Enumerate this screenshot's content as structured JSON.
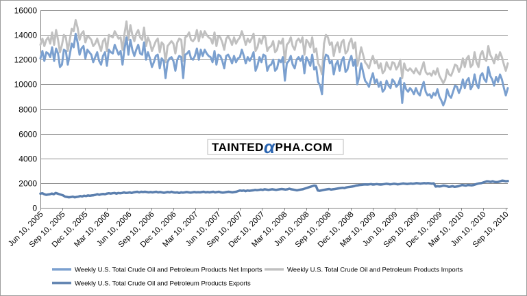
{
  "chart_data": {
    "type": "line",
    "title": "",
    "xlabel": "",
    "ylabel": "",
    "ylim": [
      0,
      16000
    ],
    "yticks": [
      0,
      2000,
      4000,
      6000,
      8000,
      10000,
      12000,
      14000,
      16000
    ],
    "xtick_labels": [
      "Jun 10, 2005",
      "Sep 10, 2005",
      "Dec 10, 2005",
      "Mar 10, 2006",
      "Jun 10, 2006",
      "Sep 10, 2006",
      "Dec 10, 2006",
      "Mar 10, 2007",
      "Jun 10, 2007",
      "Sep 10, 2007",
      "Dec 10, 2007",
      "Mar 10, 2008",
      "Jun 10, 2008",
      "Sep 10, 2008",
      "Dec 10, 2008",
      "Mar 10, 2009",
      "Jun 10, 2009",
      "Sep 10, 2009",
      "Dec 10, 2009",
      "Mar 10, 2010",
      "Jun 10, 2010",
      "Sep 10, 2010"
    ],
    "x_start_index": 0,
    "x_end_index": 21.1,
    "grid": true,
    "legend_position": "bottom",
    "series": [
      {
        "name": "Weekly U.S. Total Crude Oil and Petroleum Products Net Imports",
        "color": "#7ba0cf",
        "width": 3,
        "values": [
          12100,
          12700,
          11900,
          12600,
          12500,
          12200,
          13000,
          11900,
          12900,
          12500,
          11400,
          11600,
          12800,
          12700,
          11600,
          12400,
          13300,
          13000,
          14100,
          13400,
          12400,
          12900,
          13100,
          12100,
          12800,
          12600,
          12400,
          11800,
          12200,
          12600,
          11900,
          11600,
          12300,
          12600,
          11500,
          12800,
          12600,
          12500,
          13200,
          12800,
          12400,
          12700,
          11600,
          12900,
          13800,
          12400,
          13600,
          12800,
          12300,
          12800,
          13200,
          12500,
          12400,
          13400,
          12000,
          12600,
          12100,
          11400,
          11800,
          12300,
          12400,
          11300,
          12100,
          11900,
          10500,
          11800,
          12100,
          12200,
          11900,
          11100,
          12000,
          12300,
          12200,
          10500,
          12400,
          12500,
          12700,
          12100,
          12000,
          12300,
          12900,
          12000,
          12800,
          12300,
          12800,
          12500,
          12300,
          12200,
          11800,
          12700,
          11600,
          12400,
          12300,
          11900,
          11300,
          12300,
          12400,
          12100,
          11700,
          12300,
          11800,
          12100,
          12200,
          12800,
          12300,
          11700,
          12200,
          11900,
          12200,
          12600,
          11100,
          11500,
          12200,
          11800,
          12400,
          12300,
          11100,
          11500,
          11600,
          12000,
          11100,
          11300,
          12000,
          11800,
          12200,
          10300,
          11700,
          11900,
          12300,
          11600,
          11300,
          12000,
          12200,
          11900,
          12300,
          10900,
          12200,
          11900,
          11500,
          12400,
          11200,
          11400,
          10200,
          9900,
          9200,
          11800,
          12400,
          12300,
          11700,
          11900,
          10800,
          11600,
          11900,
          11100,
          11900,
          12200,
          11000,
          11200,
          11900,
          12300,
          11500,
          12000,
          10000,
          10600,
          11700,
          11000,
          10300,
          10100,
          9800,
          10400,
          10900,
          10100,
          10400,
          9800,
          10200,
          9400,
          9600,
          10300,
          9900,
          9700,
          10400,
          10200,
          9800,
          10000,
          10500,
          8500,
          10100,
          9600,
          9400,
          9700,
          9500,
          9200,
          9700,
          9300,
          9100,
          9700,
          10200,
          9400,
          9100,
          9200,
          8900,
          9300,
          9100,
          9600,
          9000,
          8700,
          8300,
          8700,
          9600,
          9100,
          8900,
          9400,
          9900,
          9800,
          9300,
          9700,
          10400,
          9700,
          10300,
          10500,
          9600,
          9900,
          10800,
          10000,
          9700,
          10700,
          10900,
          10400,
          10200,
          11400,
          10700,
          10400,
          9900,
          10600,
          10200,
          10800,
          10400,
          9700,
          9100,
          9700
        ]
      },
      {
        "name": "Weekly U.S. Total Crude Oil and Petroleum Products Imports",
        "color": "#c0c0c0",
        "width": 3,
        "values": [
          13200,
          13700,
          13100,
          13600,
          13800,
          13300,
          14200,
          13200,
          14400,
          13600,
          12600,
          13200,
          14000,
          13800,
          12700,
          13600,
          14500,
          14300,
          15200,
          14600,
          13600,
          14100,
          14300,
          13400,
          13900,
          13800,
          13600,
          13100,
          13300,
          13700,
          13200,
          12700,
          13500,
          13700,
          12700,
          14000,
          13900,
          13800,
          14300,
          14000,
          13700,
          13800,
          12800,
          14100,
          15100,
          13600,
          14800,
          14000,
          13500,
          14100,
          14400,
          13800,
          13600,
          14600,
          13100,
          13800,
          13400,
          12700,
          13100,
          13500,
          13700,
          12600,
          13400,
          13200,
          11800,
          13100,
          13300,
          13500,
          13300,
          12500,
          13400,
          13700,
          13600,
          11900,
          13800,
          13900,
          14200,
          13600,
          13500,
          13700,
          14400,
          13500,
          14300,
          13800,
          14300,
          14000,
          13800,
          13700,
          13300,
          14200,
          13100,
          13900,
          13800,
          13400,
          12800,
          13700,
          13900,
          13600,
          13200,
          13800,
          13300,
          13600,
          13800,
          14300,
          13800,
          13200,
          13700,
          13400,
          13700,
          14100,
          12700,
          13000,
          13700,
          13300,
          13900,
          13800,
          12700,
          13000,
          13100,
          13500,
          12600,
          12800,
          13500,
          13300,
          13700,
          11800,
          13200,
          13400,
          13800,
          13100,
          12800,
          13500,
          13700,
          13400,
          13800,
          12400,
          13600,
          13400,
          13000,
          13800,
          12600,
          12900,
          11700,
          11400,
          10800,
          13300,
          14000,
          13800,
          13200,
          13400,
          12300,
          13100,
          13400,
          12600,
          13400,
          13600,
          12500,
          12700,
          13400,
          13700,
          12900,
          13400,
          11500,
          12100,
          13000,
          12400,
          11800,
          11600,
          11300,
          11900,
          12300,
          11700,
          11900,
          11300,
          11700,
          10900,
          11100,
          11800,
          11400,
          11200,
          11800,
          11700,
          11200,
          11500,
          12000,
          10500,
          11700,
          11200,
          11100,
          11300,
          11100,
          10900,
          11300,
          11000,
          10800,
          11300,
          11800,
          11000,
          10800,
          10900,
          10700,
          11100,
          10800,
          11300,
          10700,
          10400,
          10100,
          10400,
          11200,
          10800,
          10700,
          11100,
          11600,
          11500,
          11000,
          11400,
          12100,
          11400,
          12100,
          12300,
          11400,
          11600,
          12600,
          11800,
          11400,
          12400,
          12700,
          12100,
          11900,
          13100,
          12400,
          12100,
          11700,
          12400,
          12000,
          12600,
          12200,
          11600,
          11100,
          11700
        ]
      },
      {
        "name": "Weekly U.S. Total Crude Oil and Petroleum Products Exports",
        "color": "#5b7fae",
        "width": 3.5,
        "values": [
          1150,
          1180,
          1100,
          1050,
          1080,
          1100,
          1150,
          1100,
          1200,
          1150,
          1100,
          1050,
          1000,
          900,
          880,
          850,
          870,
          900,
          850,
          880,
          900,
          950,
          920,
          980,
          950,
          1000,
          980,
          1000,
          1020,
          1050,
          1100,
          1050,
          1100,
          1120,
          1100,
          1150,
          1180,
          1150,
          1180,
          1200,
          1150,
          1200,
          1180,
          1200,
          1250,
          1200,
          1220,
          1250,
          1200,
          1250,
          1280,
          1300,
          1250,
          1300,
          1280,
          1300,
          1280,
          1250,
          1280,
          1250,
          1280,
          1300,
          1250,
          1280,
          1250,
          1220,
          1250,
          1280,
          1250,
          1300,
          1250,
          1230,
          1250,
          1200,
          1250,
          1230,
          1250,
          1280,
          1250,
          1230,
          1250,
          1280,
          1250,
          1270,
          1250,
          1280,
          1300,
          1250,
          1280,
          1250,
          1280,
          1300,
          1250,
          1280,
          1300,
          1250,
          1230,
          1250,
          1280,
          1300,
          1280,
          1250,
          1280,
          1300,
          1350,
          1400,
          1380,
          1400,
          1350,
          1400,
          1380,
          1400,
          1420,
          1450,
          1430,
          1450,
          1480,
          1450,
          1500,
          1480,
          1450,
          1480,
          1500,
          1480,
          1450,
          1480,
          1500,
          1520,
          1500,
          1480,
          1500,
          1550,
          1500,
          1480,
          1450,
          1420,
          1450,
          1480,
          1500,
          1550,
          1600,
          1650,
          1700,
          1750,
          1800,
          1780,
          1400,
          1380,
          1420,
          1450,
          1480,
          1500,
          1520,
          1480,
          1500,
          1520,
          1550,
          1580,
          1600,
          1620,
          1600,
          1650,
          1680,
          1700,
          1720,
          1750,
          1800,
          1820,
          1850,
          1860,
          1880,
          1900,
          1880,
          1900,
          1920,
          1880,
          1900,
          1920,
          1900,
          1880,
          1900,
          1920,
          1950,
          1930,
          1900,
          1920,
          1950,
          1930,
          1900,
          1920,
          1950,
          1970,
          1950,
          1930,
          1950,
          1970,
          1950,
          1970,
          2000,
          1980,
          1960,
          1980,
          2000,
          1980,
          2000,
          1980,
          1960,
          1980,
          1720,
          1750,
          1730,
          1750,
          1800,
          1780,
          1750,
          1700,
          1720,
          1750,
          1700,
          1720,
          1750,
          1800,
          1850,
          1820,
          1800,
          1850,
          1830,
          1820,
          1850,
          1900,
          1950,
          1980,
          2000,
          2050,
          2100,
          2150,
          2130,
          2100,
          2150,
          2100,
          2080,
          2100,
          2150,
          2200,
          2180,
          2150,
          2170
        ]
      }
    ]
  },
  "watermark": {
    "pre": "TAINTED",
    "alpha": "α",
    "post": "PHA.COM"
  }
}
